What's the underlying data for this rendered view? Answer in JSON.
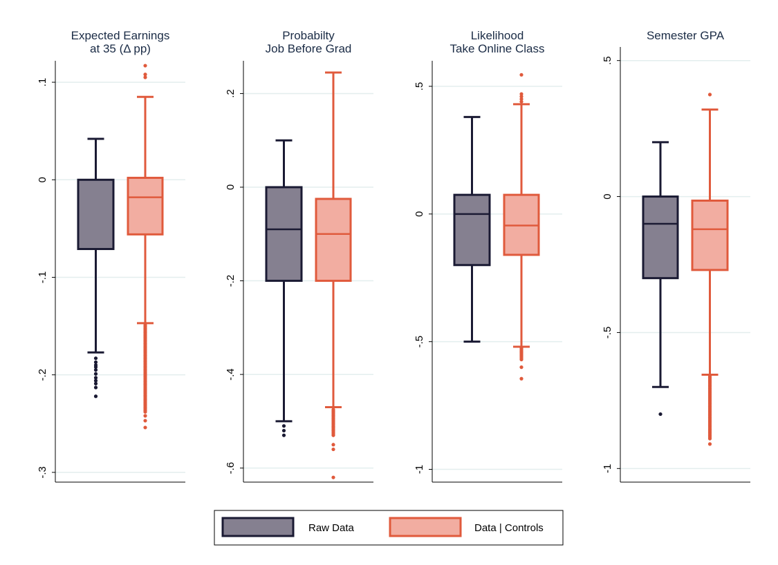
{
  "colors": {
    "raw_fill": "#858090",
    "raw_stroke": "#1a1a33",
    "ctrl_fill": "#f2ada1",
    "ctrl_stroke": "#e05a3c",
    "grid": "#e3eeee"
  },
  "legend": {
    "raw_label": "Raw Data",
    "ctrl_label": "Data | Controls"
  },
  "chart_data": [
    {
      "type": "box",
      "title_lines": [
        "Expected Earnings",
        "at 35 (Δ pp)"
      ],
      "yticks": [
        0.1,
        0,
        -0.1,
        -0.2,
        -0.3
      ],
      "ytick_labels": [
        ".1",
        "0",
        "-.1",
        "-.2",
        "-.3"
      ],
      "ylim": [
        -0.31,
        0.122
      ],
      "series": [
        {
          "name": "Raw Data",
          "whisker_low": -0.177,
          "q1": -0.071,
          "median": 0.0,
          "q3": 0.0,
          "whisker_high": 0.042,
          "outliers": [
            -0.183,
            -0.187,
            -0.19,
            -0.192,
            -0.195,
            -0.199,
            -0.203,
            -0.206,
            -0.209,
            -0.213,
            -0.222
          ]
        },
        {
          "name": "Data | Controls",
          "whisker_low": -0.147,
          "q1": -0.056,
          "median": -0.018,
          "q3": 0.002,
          "whisker_high": 0.085,
          "outliers_range": [
            -0.149,
            -0.238
          ],
          "outliers": [
            -0.242,
            -0.247,
            -0.254,
            0.105,
            0.108,
            0.117
          ]
        }
      ]
    },
    {
      "type": "box",
      "title_lines": [
        "Probabilty",
        "Job Before Grad"
      ],
      "yticks": [
        0.2,
        0,
        -0.2,
        -0.4,
        -0.6
      ],
      "ytick_labels": [
        ".2",
        "0",
        "-.2",
        "-.4",
        "-.6"
      ],
      "ylim": [
        -0.63,
        0.27
      ],
      "series": [
        {
          "name": "Raw Data",
          "whisker_low": -0.5,
          "q1": -0.2,
          "median": -0.09,
          "q3": 0.0,
          "whisker_high": 0.1,
          "outliers": [
            -0.51,
            -0.52,
            -0.53
          ]
        },
        {
          "name": "Data | Controls",
          "whisker_low": -0.47,
          "q1": -0.2,
          "median": -0.1,
          "q3": -0.025,
          "whisker_high": 0.245,
          "outliers_range": [
            -0.475,
            -0.53
          ],
          "outliers": [
            -0.55,
            -0.56,
            -0.62
          ]
        }
      ]
    },
    {
      "type": "box",
      "title_lines": [
        "Likelihood",
        "Take Online Class"
      ],
      "yticks": [
        0.5,
        0,
        -0.5,
        -1
      ],
      "ytick_labels": [
        ".5",
        "0",
        "-.5",
        "-1"
      ],
      "ylim": [
        -1.05,
        0.6
      ],
      "series": [
        {
          "name": "Raw Data",
          "whisker_low": -0.5,
          "q1": -0.2,
          "median": 0.0,
          "q3": 0.075,
          "whisker_high": 0.38,
          "outliers": []
        },
        {
          "name": "Data | Controls",
          "whisker_low": -0.52,
          "q1": -0.16,
          "median": -0.045,
          "q3": 0.075,
          "whisker_high": 0.43,
          "outliers_range": [
            -0.525,
            -0.57
          ],
          "outliers": [
            0.44,
            0.45,
            0.46,
            0.47,
            0.545,
            -0.6,
            -0.645
          ]
        }
      ]
    },
    {
      "type": "box",
      "title_lines": [
        "Semester GPA"
      ],
      "yticks": [
        0.5,
        0,
        -0.5,
        -1
      ],
      "ytick_labels": [
        ".5",
        "0",
        "-.5",
        "-1"
      ],
      "ylim": [
        -1.05,
        0.55
      ],
      "series": [
        {
          "name": "Raw Data",
          "whisker_low": -0.7,
          "q1": -0.3,
          "median": -0.1,
          "q3": 0.0,
          "whisker_high": 0.2,
          "outliers": [
            -0.8
          ]
        },
        {
          "name": "Data | Controls",
          "whisker_low": -0.655,
          "q1": -0.27,
          "median": -0.12,
          "q3": -0.015,
          "whisker_high": 0.32,
          "outliers_range": [
            -0.66,
            -0.89
          ],
          "outliers": [
            -0.91,
            0.375
          ]
        }
      ]
    }
  ]
}
